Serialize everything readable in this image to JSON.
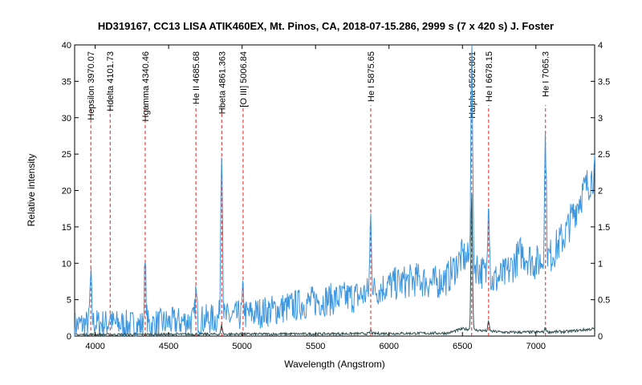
{
  "chart_data": {
    "type": "line",
    "title": "HD319167, CC13 LISA ATIK460EX, Mt. Pinos, CA, 2018-07-15.286, 2999 s (7 x 420 s)  J. Foster",
    "xlabel": "Wavelength (Angstrom)",
    "ylabel": "Relative intensity",
    "xlim": [
      3860,
      7400
    ],
    "ylim": [
      0,
      40
    ],
    "y2lim": [
      0,
      4
    ],
    "x_ticks": [
      "4000",
      "4500",
      "5000",
      "5500",
      "6000",
      "6500",
      "7000"
    ],
    "y_ticks": [
      "0",
      "5",
      "10",
      "15",
      "20",
      "25",
      "30",
      "35",
      "40"
    ],
    "y2_ticks": [
      "0",
      "0.5",
      "1",
      "1.5",
      "2",
      "2.5",
      "3",
      "3.5",
      "4"
    ],
    "grid": false,
    "colors": {
      "series_blue": "#3c96e0",
      "series_dark": "#2f4f4f",
      "lines": "#e02020"
    },
    "lines": [
      {
        "label": "Hepsilon 3970.07",
        "x": 3970.07
      },
      {
        "label": "Hdelta 4101.73",
        "x": 4101.73
      },
      {
        "label": "Hgamma 4340.46",
        "x": 4340.46
      },
      {
        "label": "He II 4685.68",
        "x": 4685.68
      },
      {
        "label": "Hbeta 4861.363",
        "x": 4861.363
      },
      {
        "label": "[O III] 5006.84",
        "x": 5006.84
      },
      {
        "label": "He I 5875.65",
        "x": 5875.65
      },
      {
        "label": "Halpha 6562.801",
        "x": 6562.801
      },
      {
        "label": "He I 6678.15",
        "x": 6678.15
      },
      {
        "label": "He I 7065.3",
        "x": 7065.3
      }
    ],
    "series": [
      {
        "axis": "left",
        "continuum": [
          [
            3860,
            1.5
          ],
          [
            4000,
            1.8
          ],
          [
            4300,
            1.5
          ],
          [
            4600,
            2.0
          ],
          [
            4900,
            2.5
          ],
          [
            5200,
            3.5
          ],
          [
            5500,
            4.8
          ],
          [
            5800,
            5.5
          ],
          [
            6000,
            7.0
          ],
          [
            6200,
            7.8
          ],
          [
            6300,
            7.2
          ],
          [
            6400,
            8.0
          ],
          [
            6500,
            11.0
          ],
          [
            6600,
            9.5
          ],
          [
            6700,
            7.5
          ],
          [
            6800,
            8.5
          ],
          [
            6900,
            11.5
          ],
          [
            7000,
            10.0
          ],
          [
            7100,
            11.0
          ],
          [
            7200,
            14.0
          ],
          [
            7300,
            19.0
          ],
          [
            7400,
            22.5
          ]
        ],
        "peaks": [
          [
            3970,
            8
          ],
          [
            4102,
            3
          ],
          [
            4340,
            9.5
          ],
          [
            4686,
            6
          ],
          [
            4861,
            27
          ],
          [
            5007,
            6
          ],
          [
            5876,
            16.5
          ],
          [
            6563,
            40
          ],
          [
            6678,
            20
          ],
          [
            7065,
            27.5
          ]
        ]
      },
      {
        "axis": "right",
        "continuum": [
          [
            3860,
            0.02
          ],
          [
            5500,
            0.03
          ],
          [
            6400,
            0.04
          ],
          [
            6500,
            0.1
          ],
          [
            6600,
            0.08
          ],
          [
            6800,
            0.05
          ],
          [
            7200,
            0.06
          ],
          [
            7400,
            0.1
          ]
        ],
        "peaks": [
          [
            4861,
            0.15
          ],
          [
            5876,
            0.08
          ],
          [
            6563,
            2.0
          ],
          [
            6678,
            0.2
          ],
          [
            7065,
            0.12
          ]
        ]
      }
    ]
  }
}
